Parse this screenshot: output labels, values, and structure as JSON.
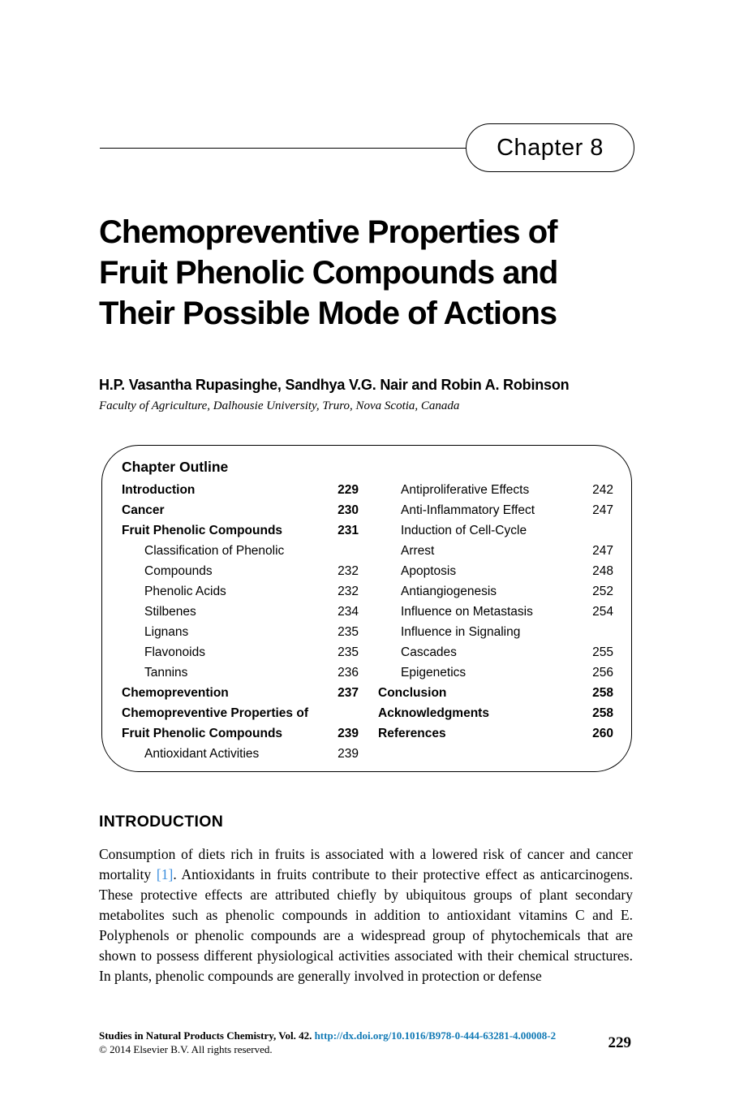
{
  "badge": {
    "label": "Chapter 8"
  },
  "title": {
    "lines": [
      "Chemopreventive Properties of",
      "Fruit Phenolic Compounds and",
      "Their Possible Mode of Actions"
    ]
  },
  "authors": "H.P. Vasantha Rupasinghe, Sandhya V.G. Nair and Robin A. Robinson",
  "affiliation": "Faculty of Agriculture, Dalhousie University, Truro, Nova Scotia, Canada",
  "outline": {
    "heading": "Chapter Outline",
    "left": [
      {
        "label": "Introduction",
        "page": "229",
        "bold": true,
        "indent": false
      },
      {
        "label": "Cancer",
        "page": "230",
        "bold": true,
        "indent": false
      },
      {
        "label": "Fruit Phenolic Compounds",
        "page": "231",
        "bold": true,
        "indent": false
      },
      {
        "label": "Classification of Phenolic",
        "page": "",
        "bold": false,
        "indent": true
      },
      {
        "label": "Compounds",
        "page": "232",
        "bold": false,
        "indent": true
      },
      {
        "label": "Phenolic Acids",
        "page": "232",
        "bold": false,
        "indent": true
      },
      {
        "label": "Stilbenes",
        "page": "234",
        "bold": false,
        "indent": true
      },
      {
        "label": "Lignans",
        "page": "235",
        "bold": false,
        "indent": true
      },
      {
        "label": "Flavonoids",
        "page": "235",
        "bold": false,
        "indent": true
      },
      {
        "label": "Tannins",
        "page": "236",
        "bold": false,
        "indent": true
      },
      {
        "label": "Chemoprevention",
        "page": "237",
        "bold": true,
        "indent": false
      },
      {
        "label": "Chemopreventive Properties of",
        "page": "",
        "bold": true,
        "indent": false
      },
      {
        "label": "Fruit Phenolic Compounds",
        "page": "239",
        "bold": true,
        "indent": false
      },
      {
        "label": "Antioxidant Activities",
        "page": "239",
        "bold": false,
        "indent": true
      }
    ],
    "right": [
      {
        "label": "Antiproliferative Effects",
        "page": "242",
        "bold": false,
        "indent": true
      },
      {
        "label": "Anti-Inflammatory Effect",
        "page": "247",
        "bold": false,
        "indent": true
      },
      {
        "label": "Induction of Cell-Cycle",
        "page": "",
        "bold": false,
        "indent": true
      },
      {
        "label": "Arrest",
        "page": "247",
        "bold": false,
        "indent": true
      },
      {
        "label": "Apoptosis",
        "page": "248",
        "bold": false,
        "indent": true
      },
      {
        "label": "Antiangiogenesis",
        "page": "252",
        "bold": false,
        "indent": true
      },
      {
        "label": "Influence on Metastasis",
        "page": "254",
        "bold": false,
        "indent": true
      },
      {
        "label": "Influence in Signaling",
        "page": "",
        "bold": false,
        "indent": true
      },
      {
        "label": "Cascades",
        "page": "255",
        "bold": false,
        "indent": true
      },
      {
        "label": "Epigenetics",
        "page": "256",
        "bold": false,
        "indent": true
      },
      {
        "label": "Conclusion",
        "page": "258",
        "bold": true,
        "indent": false
      },
      {
        "label": "Acknowledgments",
        "page": "258",
        "bold": true,
        "indent": false
      },
      {
        "label": "References",
        "page": "260",
        "bold": true,
        "indent": false
      }
    ]
  },
  "introduction": {
    "heading": "INTRODUCTION",
    "paragraph": {
      "before_citation": "Consumption of diets rich in fruits is associated with a lowered risk of cancer and cancer mortality ",
      "citation": "[1]",
      "after_citation": ". Antioxidants in fruits contribute to their protective effect as anticarcinogens. These protective effects are attributed chiefly by ubiquitous groups of plant secondary metabolites such as phenolic compounds in addition to antioxidant vitamins C and E. Polyphenols or phenolic compounds are a widespread group of phytochemicals that are shown to possess different physiological activities associated with their chemical structures. In plants, phenolic compounds are generally involved in protection or defense"
    }
  },
  "footer": {
    "book_info": "Studies in Natural Products Chemistry, Vol. 42.",
    "doi_link": "http://dx.doi.org/10.1016/B978-0-444-63281-4.00008-2",
    "copyright": "© 2014 Elsevier B.V. All rights reserved.",
    "page_number": "229"
  },
  "colors": {
    "link_blue": "#1079b5",
    "citation_blue": "#3b8ede",
    "text": "#000000"
  }
}
